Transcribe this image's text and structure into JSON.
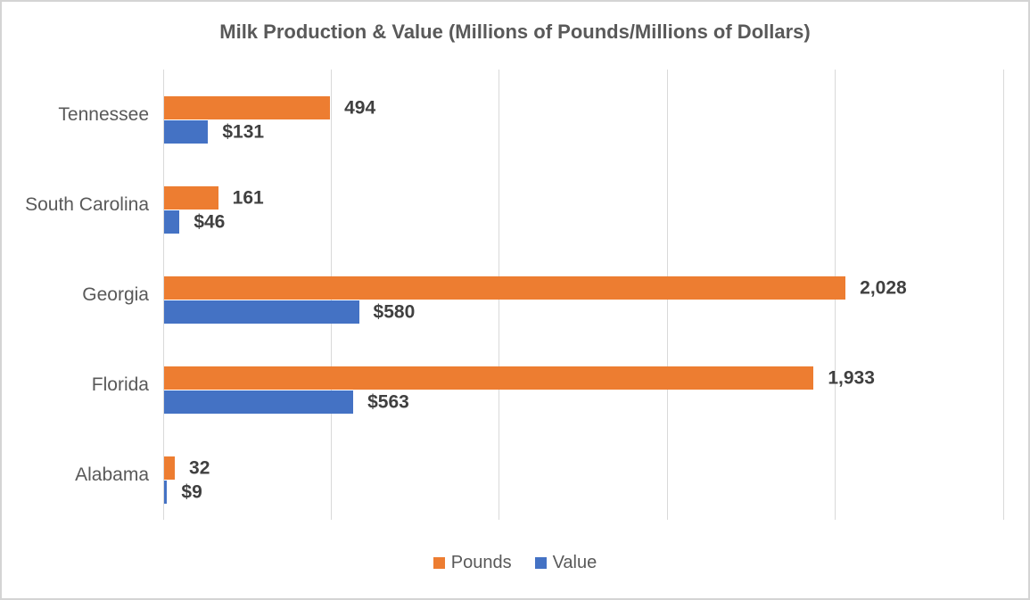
{
  "chart_data": {
    "type": "bar",
    "orientation": "horizontal",
    "title": "Milk Production & Value (Millions of Pounds/Millions of Dollars)",
    "categories": [
      "Tennessee",
      "South Carolina",
      "Georgia",
      "Florida",
      "Alabama"
    ],
    "series": [
      {
        "name": "Pounds",
        "color": "#ED7D31",
        "values": [
          494,
          161,
          2028,
          1933,
          32
        ],
        "labels": [
          "494",
          "161",
          "2,028",
          "1,933",
          "32"
        ]
      },
      {
        "name": "Value",
        "color": "#4472C4",
        "values": [
          131,
          46,
          580,
          563,
          9
        ],
        "labels": [
          "$131",
          "$46",
          "$580",
          "$563",
          "$9"
        ]
      }
    ],
    "xlim": [
      0,
      2500
    ],
    "gridline_step": 500,
    "grid": true,
    "axis_tick_labels_shown": false,
    "legend_position": "bottom",
    "gridline_color": "#D9D9D9",
    "title_color": "#595959",
    "category_text_color": "#595959",
    "data_label_color": "#404040",
    "background_color": "#FFFFFF"
  }
}
